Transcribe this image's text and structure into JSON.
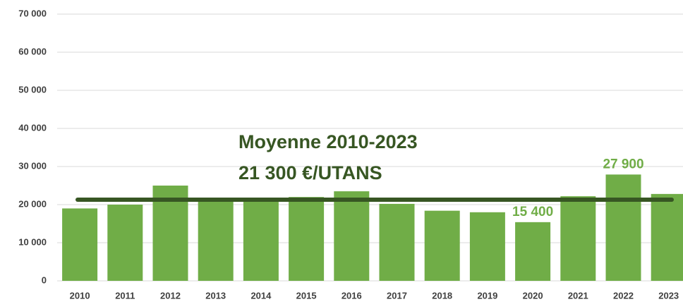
{
  "chart_data": {
    "type": "bar",
    "categories": [
      "2010",
      "2011",
      "2012",
      "2013",
      "2014",
      "2015",
      "2016",
      "2017",
      "2018",
      "2019",
      "2020",
      "2021",
      "2022",
      "2023"
    ],
    "values": [
      19000,
      20000,
      25000,
      21500,
      21000,
      22000,
      23500,
      20200,
      18400,
      18000,
      15400,
      22200,
      27900,
      22800
    ],
    "value_labels": [
      null,
      null,
      null,
      null,
      null,
      null,
      null,
      null,
      null,
      null,
      "15 400",
      null,
      "27 900",
      null
    ],
    "color": "#70ad47",
    "average": 21300,
    "average_color": "#375623",
    "annotation": [
      "Moyenne 2010-2023",
      "21 300 €/UTANS"
    ],
    "ylim": [
      0,
      70000
    ],
    "yticks": [
      0,
      {
        "value": 10000,
        "label": "10 000"
      },
      {
        "value": 20000,
        "label": "20 000"
      },
      {
        "value": 30000,
        "label": "30 000"
      },
      {
        "value": 40000,
        "label": "40 000"
      },
      {
        "value": 50000,
        "label": "50 000"
      },
      {
        "value": 60000,
        "label": "60 000"
      },
      {
        "value": 70000,
        "label": "70 000"
      }
    ],
    "grid": true
  }
}
